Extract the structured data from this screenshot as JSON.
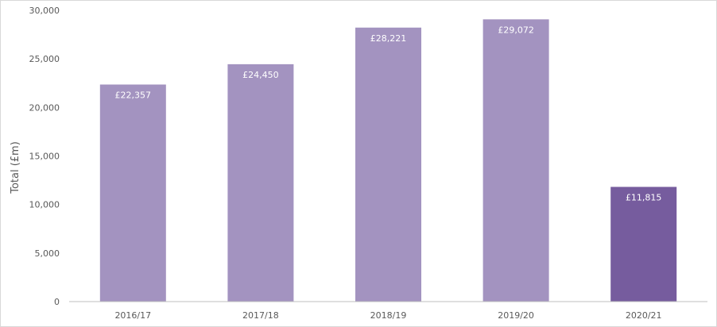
{
  "chart_data": {
    "type": "bar",
    "categories": [
      "2016/17",
      "2017/18",
      "2018/19",
      "2019/20",
      "2020/21"
    ],
    "values": [
      22357,
      24450,
      28221,
      29072,
      11815
    ],
    "data_labels": [
      "£22,357",
      "£24,450",
      "£28,221",
      "£29,072",
      "£11,815"
    ],
    "title": "",
    "xlabel": "",
    "ylabel": "Total (£m)",
    "ylim": [
      0,
      30000
    ],
    "yticks": [
      0,
      5000,
      10000,
      15000,
      20000,
      25000,
      30000
    ],
    "ytick_labels": [
      "0",
      "5,000",
      "10,000",
      "15,000",
      "20,000",
      "25,000",
      "30,000"
    ],
    "grid": false,
    "legend": "none",
    "colors": {
      "bar": "#a393c0",
      "bar_highlight": "#765c9e",
      "axis": "#bfbfbf",
      "text": "#595959",
      "data_label": "#ffffff"
    },
    "highlight_index": 4
  }
}
